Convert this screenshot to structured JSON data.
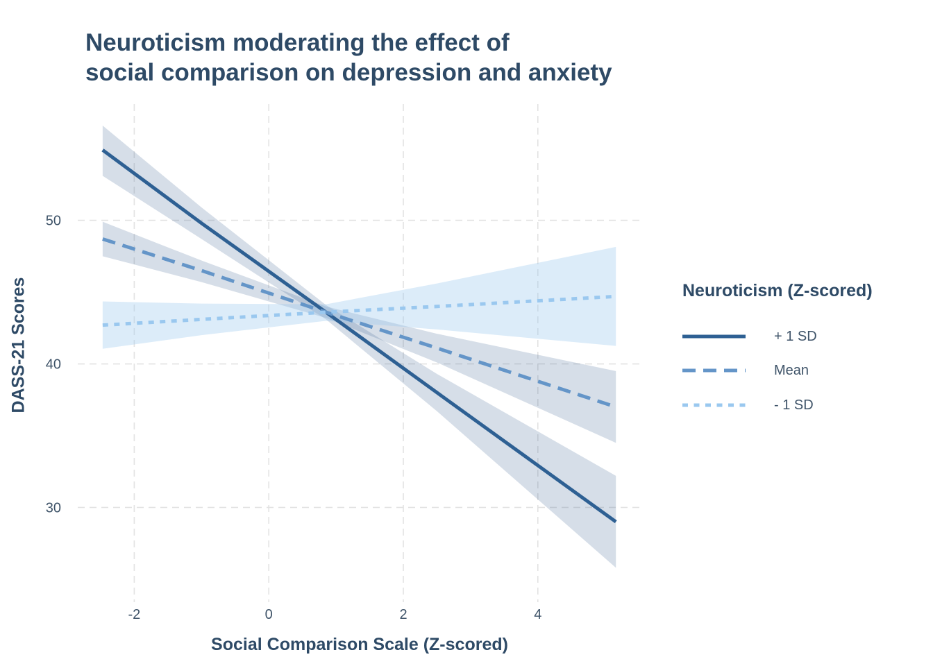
{
  "figure": {
    "title_line1": "Neuroticism moderating the effect of",
    "title_line2": "social comparison on depression and anxiety"
  },
  "axes": {
    "x_title": "Social Comparison Scale (Z-scored)",
    "y_title": "DASS-21 Scores"
  },
  "legend": {
    "title": "Neuroticism (Z-scored)",
    "items": [
      {
        "label": "+ 1 SD",
        "style": "solid",
        "color": "#2E6093"
      },
      {
        "label": "Mean",
        "style": "dashed",
        "color": "#6495C8"
      },
      {
        "label": "- 1 SD",
        "style": "dotted",
        "color": "#9AC8EF"
      }
    ]
  },
  "colors": {
    "title_text": "#2E4A66",
    "tick_text": "#3E5368",
    "grid": "#E2E2E2",
    "background": "#FFFFFF"
  },
  "chart_data": {
    "type": "line",
    "title": "Neuroticism moderating the effect of social comparison on depression and anxiety",
    "xlabel": "Social Comparison Scale (Z-scored)",
    "ylabel": "DASS-21 Scores",
    "legend_title": "Neuroticism (Z-scored)",
    "legend_position": "right",
    "grid": "dashed",
    "x_ticks": [
      -2,
      0,
      2,
      4
    ],
    "y_ticks": [
      30,
      40,
      50
    ],
    "xlim": [
      -2.84,
      5.55
    ],
    "ylim": [
      23.4,
      58.1
    ],
    "series": [
      {
        "name": "+ 1 SD",
        "line_style": "solid",
        "color": "#2E6093",
        "ci_fill": "rgba(70,105,150,0.22)",
        "x": [
          -2.47,
          -1.0,
          0.85,
          2.5,
          5.16
        ],
        "y": [
          54.9,
          49.8,
          43.6,
          38.0,
          29.0
        ],
        "ci_upper": [
          56.6,
          50.9,
          44.1,
          39.3,
          32.2
        ],
        "ci_lower": [
          53.1,
          48.7,
          43.1,
          36.7,
          25.8
        ]
      },
      {
        "name": "Mean",
        "line_style": "dashed",
        "color": "#6495C8",
        "ci_fill": "rgba(70,105,150,0.22)",
        "x": [
          -2.47,
          -1.0,
          0.85,
          2.5,
          5.16
        ],
        "y": [
          48.7,
          46.5,
          43.6,
          41.1,
          37.0
        ],
        "ci_upper": [
          49.9,
          47.2,
          44.0,
          42.1,
          39.5
        ],
        "ci_lower": [
          47.5,
          45.7,
          43.2,
          40.1,
          34.5
        ]
      },
      {
        "name": "- 1 SD",
        "line_style": "dotted",
        "color": "#9AC8EF",
        "ci_fill": "rgba(154,200,239,0.35)",
        "x": [
          -2.47,
          -1.0,
          0.85,
          2.5,
          5.16
        ],
        "y": [
          42.7,
          43.1,
          43.6,
          44.0,
          44.7
        ],
        "ci_upper": [
          44.35,
          44.2,
          44.15,
          45.6,
          48.15
        ],
        "ci_lower": [
          41.05,
          42.0,
          43.0,
          42.4,
          41.25
        ]
      }
    ]
  }
}
